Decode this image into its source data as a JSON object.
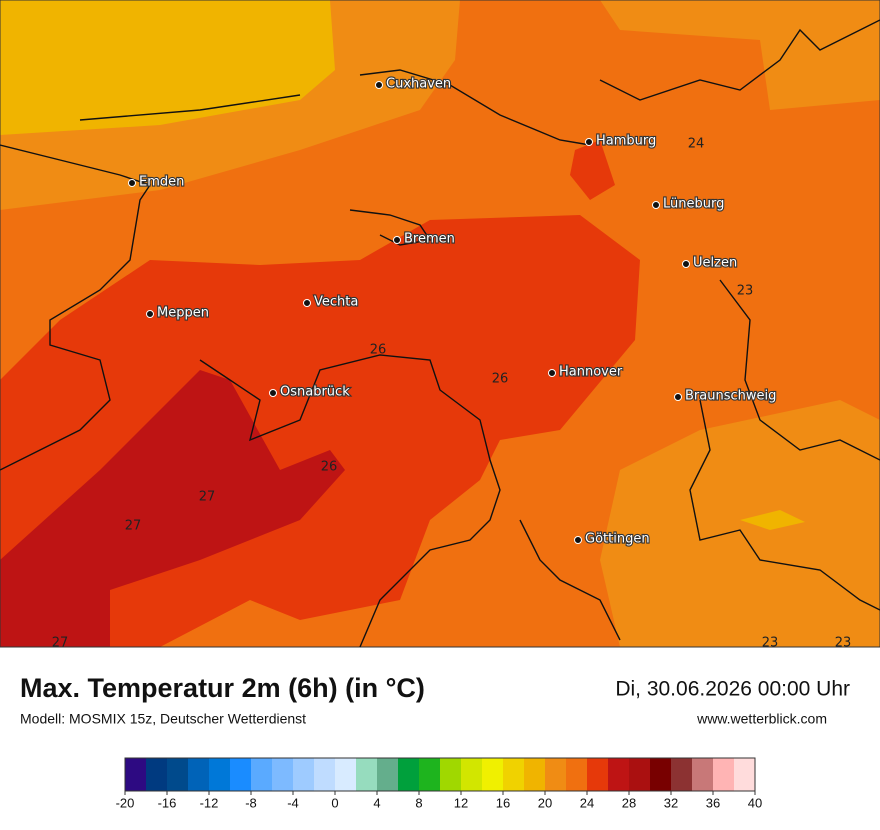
{
  "header": {
    "title": "Max. Temperatur 2m (6h) (in °C)",
    "subtitle": "Modell: MOSMIX 15z, Deutscher Wetterdienst",
    "date": "Di, 30.06.2026 00:00 Uhr",
    "website": "www.wetterblick.com"
  },
  "map": {
    "cities": [
      "Cuxhaven",
      "Hamburg",
      "Emden",
      "Lüneburg",
      "Bremen",
      "Uelzen",
      "Meppen",
      "Vechta",
      "Hannover",
      "Osnabrück",
      "Braunschweig",
      "Göttingen"
    ],
    "contour_labels": [
      24,
      23,
      26,
      26,
      26,
      27,
      27,
      27,
      23,
      23
    ]
  },
  "colorbar": {
    "range": [
      -20,
      40
    ],
    "ticks": [
      -20,
      -16,
      -12,
      -8,
      -4,
      0,
      4,
      8,
      12,
      16,
      20,
      24,
      28,
      32,
      36,
      40
    ],
    "colors": [
      "#2d0a82",
      "#003a80",
      "#004a8c",
      "#0063b8",
      "#0078d8",
      "#1a8cff",
      "#5aaaff",
      "#7dbaff",
      "#9ecbff",
      "#bfdcff",
      "#d8ebff",
      "#96dcbe",
      "#64ae8c",
      "#00a03c",
      "#1eb41e",
      "#a0d800",
      "#d2e600",
      "#f0f000",
      "#f0d200",
      "#f0b400",
      "#f08c14",
      "#f07010",
      "#e6390a",
      "#be1414",
      "#aa1010",
      "#780000",
      "#8c3232",
      "#c87878",
      "#ffb4b4",
      "#ffdcdc"
    ]
  }
}
